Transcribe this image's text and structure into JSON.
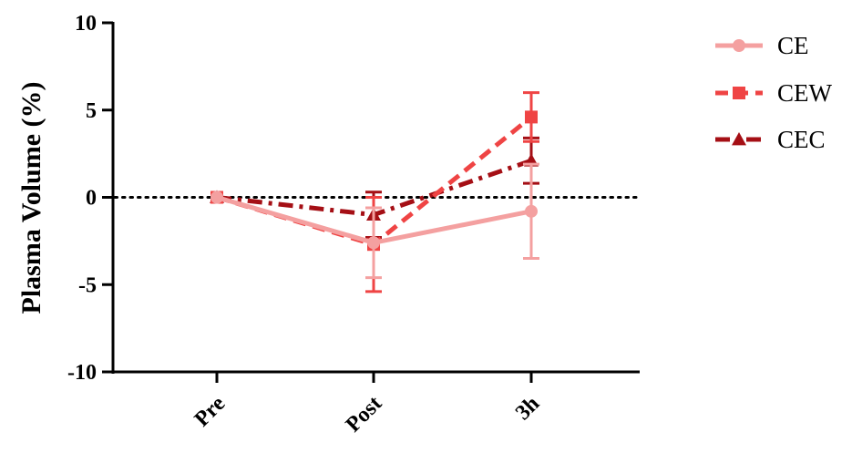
{
  "chart_data": {
    "type": "line",
    "title": "",
    "xlabel": "",
    "ylabel": "Plasma Volume (%)",
    "categories": [
      "Pre",
      "Post",
      "3h"
    ],
    "ylim": [
      -10,
      10
    ],
    "yticks": [
      -10,
      -5,
      0,
      5,
      10
    ],
    "ytick_labels": [
      "-10",
      "-5",
      "0",
      "5",
      "10"
    ],
    "reference_line": {
      "y": 0,
      "style": "dotted",
      "color": "#000000"
    },
    "grid": false,
    "legend_position": "top-right",
    "series": [
      {
        "name": "CE",
        "values": [
          0,
          -2.6,
          -0.8
        ],
        "error": [
          0,
          2.0,
          2.7
        ],
        "color": "#F4A0A0",
        "line_style": "solid",
        "marker": "circle"
      },
      {
        "name": "CEW",
        "values": [
          0,
          -2.7,
          4.6
        ],
        "error": [
          0,
          2.7,
          1.4
        ],
        "color": "#EF4444",
        "line_style": "dashed",
        "marker": "square"
      },
      {
        "name": "CEC",
        "values": [
          0,
          -1.0,
          2.1
        ],
        "error": [
          0,
          1.3,
          1.3
        ],
        "color": "#A50F15",
        "line_style": "dashdot",
        "marker": "triangle"
      }
    ]
  }
}
